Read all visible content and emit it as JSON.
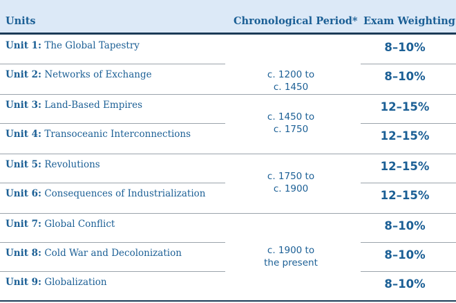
{
  "header": {
    "units": "Units",
    "period": "Chronological Period*",
    "weighting": "Exam Weighting"
  },
  "rows": [
    {
      "num": "Unit 1:",
      "title": " The Global Tapestry",
      "weight": "8–10%"
    },
    {
      "num": "Unit 2:",
      "title": " Networks of Exchange",
      "weight": "8–10%"
    },
    {
      "num": "Unit 3:",
      "title": " Land-Based Empires",
      "weight": "12–15%"
    },
    {
      "num": "Unit 4:",
      "title": " Transoceanic Interconnections",
      "weight": "12–15%"
    },
    {
      "num": "Unit 5:",
      "title": " Revolutions",
      "weight": "12–15%"
    },
    {
      "num": "Unit 6:",
      "title": " Consequences of Industrialization",
      "weight": "12–15%"
    },
    {
      "num": "Unit 7:",
      "title": " Global Conflict",
      "weight": "8–10%"
    },
    {
      "num": "Unit 8:",
      "title": " Cold War and Decolonization",
      "weight": "8–10%"
    },
    {
      "num": "Unit 9:",
      "title": " Globalization",
      "weight": "8–10%"
    }
  ],
  "periods": [
    {
      "line1": "c. 1200 to",
      "line2": "c. 1450"
    },
    {
      "line1": "c. 1450 to",
      "line2": "c. 1750"
    },
    {
      "line1": "c. 1750 to",
      "line2": "c. 1900"
    },
    {
      "line1": "c. 1900 to",
      "line2": "the present"
    }
  ]
}
